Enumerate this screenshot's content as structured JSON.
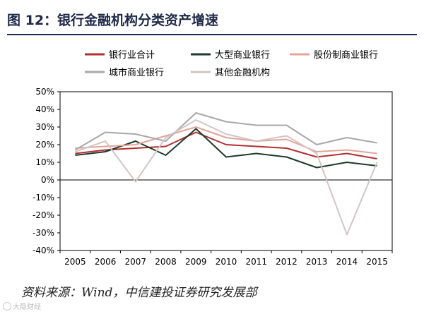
{
  "header": {
    "title": "图 12：银行金融机构分类资产增速"
  },
  "source": {
    "text": "资料来源：Wind，中信建投证券研究发展部"
  },
  "watermark": {
    "text": "大隐财经"
  },
  "chart_data": {
    "type": "line",
    "title": "",
    "xlabel": "",
    "ylabel": "",
    "x": [
      "2005",
      "2006",
      "2007",
      "2008",
      "2009",
      "2010",
      "2011",
      "2012",
      "2013",
      "2014",
      "2015"
    ],
    "ylim": [
      -40,
      50
    ],
    "yticks": [
      -40,
      -30,
      -20,
      -10,
      0,
      10,
      20,
      30,
      40,
      50
    ],
    "ytick_labels": [
      "-40%",
      "-30%",
      "-20%",
      "-10%",
      "0%",
      "10%",
      "20%",
      "30%",
      "40%",
      "50%"
    ],
    "grid": false,
    "legend_position": "top",
    "series": [
      {
        "name": "银行业合计",
        "color": "#b03030",
        "values": [
          15,
          17,
          18,
          19,
          27,
          20,
          19,
          18,
          13,
          15,
          12
        ]
      },
      {
        "name": "大型商业银行",
        "color": "#1e3a2a",
        "values": [
          14,
          16,
          22,
          14,
          29,
          13,
          15,
          13,
          7,
          10,
          8
        ]
      },
      {
        "name": "股份制商业银行",
        "color": "#e2a49a",
        "values": [
          18,
          19,
          20,
          25,
          30,
          24,
          22,
          23,
          16,
          17,
          15
        ]
      },
      {
        "name": "城市商业银行",
        "color": "#a8a8a8",
        "values": [
          17,
          27,
          26,
          22,
          38,
          33,
          31,
          31,
          20,
          24,
          21
        ]
      },
      {
        "name": "其他金融机构",
        "color": "#d4c4c4",
        "values": [
          16,
          22,
          -1,
          24,
          34,
          26,
          22,
          25,
          15,
          -31,
          10
        ]
      }
    ]
  }
}
